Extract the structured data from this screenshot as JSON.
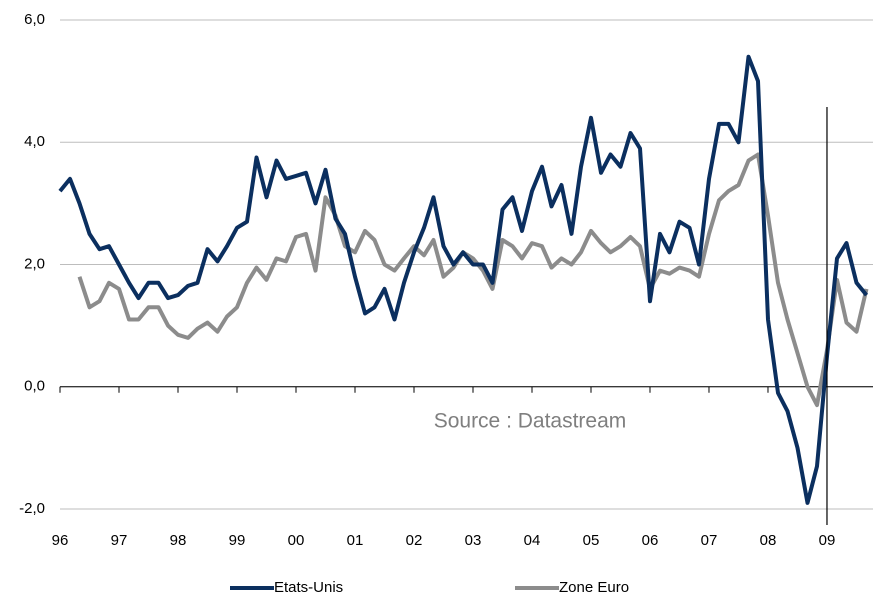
{
  "chart_data": {
    "type": "line",
    "annotation": "Source : Datastream",
    "x": [
      1996,
      1996.17,
      1996.33,
      1996.5,
      1996.67,
      1996.83,
      1997,
      1997.17,
      1997.33,
      1997.5,
      1997.67,
      1997.83,
      1998,
      1998.17,
      1998.33,
      1998.5,
      1998.67,
      1998.83,
      1999,
      1999.17,
      1999.33,
      1999.5,
      1999.67,
      1999.83,
      2000,
      2000.17,
      2000.33,
      2000.5,
      2000.67,
      2000.83,
      2001,
      2001.17,
      2001.33,
      2001.5,
      2001.67,
      2001.83,
      2002,
      2002.17,
      2002.33,
      2002.5,
      2002.67,
      2002.83,
      2003,
      2003.17,
      2003.33,
      2003.5,
      2003.67,
      2003.83,
      2004,
      2004.17,
      2004.33,
      2004.5,
      2004.67,
      2004.83,
      2005,
      2005.17,
      2005.33,
      2005.5,
      2005.67,
      2005.83,
      2006,
      2006.17,
      2006.33,
      2006.5,
      2006.67,
      2006.83,
      2007,
      2007.17,
      2007.33,
      2007.5,
      2007.67,
      2007.83,
      2008,
      2008.17,
      2008.33,
      2008.5,
      2008.67,
      2008.83,
      2009,
      2009.17,
      2009.33,
      2009.5,
      2009.67
    ],
    "series": [
      {
        "name": "Etats-Unis",
        "color": "#0b2f5f",
        "values": [
          3.2,
          3.4,
          3.0,
          2.5,
          2.25,
          2.3,
          2.0,
          1.7,
          1.45,
          1.7,
          1.7,
          1.45,
          1.5,
          1.65,
          1.7,
          2.25,
          2.05,
          2.3,
          2.6,
          2.7,
          3.75,
          3.1,
          3.7,
          3.4,
          3.45,
          3.5,
          3.0,
          3.55,
          2.75,
          2.5,
          1.8,
          1.2,
          1.3,
          1.6,
          1.1,
          1.7,
          2.2,
          2.6,
          3.1,
          2.3,
          2.0,
          2.2,
          2.0,
          2.0,
          1.7,
          2.9,
          3.1,
          2.55,
          3.2,
          3.6,
          2.95,
          3.3,
          2.5,
          3.6,
          4.4,
          3.5,
          3.8,
          3.6,
          4.15,
          3.9,
          1.4,
          2.5,
          2.2,
          2.7,
          2.6,
          2.0,
          3.4,
          4.3,
          4.3,
          4.0,
          5.4,
          5.0,
          1.1,
          -0.1,
          -0.4,
          -1.0,
          -1.9,
          -1.3,
          0.5,
          2.1,
          2.35,
          1.7,
          1.5
        ]
      },
      {
        "name": "Zone Euro",
        "color": "#8c8c8c",
        "values": [
          null,
          null,
          1.8,
          1.3,
          1.4,
          1.7,
          1.6,
          1.1,
          1.1,
          1.3,
          1.3,
          1.0,
          0.85,
          0.8,
          0.95,
          1.05,
          0.9,
          1.15,
          1.3,
          1.7,
          1.95,
          1.75,
          2.1,
          2.05,
          2.45,
          2.5,
          1.9,
          3.1,
          2.8,
          2.3,
          2.2,
          2.55,
          2.4,
          2.0,
          1.9,
          2.1,
          2.3,
          2.15,
          2.4,
          1.8,
          1.95,
          2.2,
          2.1,
          1.9,
          1.6,
          2.4,
          2.3,
          2.1,
          2.35,
          2.3,
          1.95,
          2.1,
          2.0,
          2.2,
          2.55,
          2.35,
          2.2,
          2.3,
          2.45,
          2.3,
          1.6,
          1.9,
          1.85,
          1.95,
          1.9,
          1.8,
          2.5,
          3.05,
          3.2,
          3.3,
          3.7,
          3.8,
          2.8,
          1.7,
          1.1,
          0.55,
          0.0,
          -0.3,
          0.6,
          1.75,
          1.05,
          0.9,
          1.6
        ]
      }
    ],
    "marker_x": 2009,
    "xlim": [
      1996,
      2009.78
    ],
    "xticks": [
      {
        "value": 1996,
        "label": "96"
      },
      {
        "value": 1997,
        "label": "97"
      },
      {
        "value": 1998,
        "label": "98"
      },
      {
        "value": 1999,
        "label": "99"
      },
      {
        "value": 2000,
        "label": "00"
      },
      {
        "value": 2001,
        "label": "01"
      },
      {
        "value": 2002,
        "label": "02"
      },
      {
        "value": 2003,
        "label": "03"
      },
      {
        "value": 2004,
        "label": "04"
      },
      {
        "value": 2005,
        "label": "05"
      },
      {
        "value": 2006,
        "label": "06"
      },
      {
        "value": 2007,
        "label": "07"
      },
      {
        "value": 2008,
        "label": "08"
      },
      {
        "value": 2009,
        "label": "09"
      }
    ],
    "ylim": [
      -2,
      6
    ],
    "yticks": [
      {
        "value": -2,
        "label": "-2,0"
      },
      {
        "value": 0,
        "label": "0,0"
      },
      {
        "value": 2,
        "label": "2,0"
      },
      {
        "value": 4,
        "label": "4,0"
      },
      {
        "value": 6,
        "label": "6,0"
      }
    ],
    "grid": true
  }
}
